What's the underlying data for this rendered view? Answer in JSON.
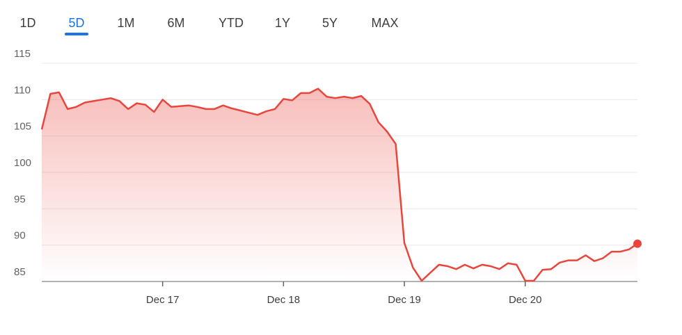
{
  "tabs": {
    "items": [
      "1D",
      "5D",
      "1M",
      "6M",
      "YTD",
      "1Y",
      "5Y",
      "MAX"
    ],
    "selected": 1
  },
  "chart_data": {
    "type": "line",
    "x": [
      0,
      1,
      2,
      3,
      4,
      5,
      6,
      7,
      8,
      9,
      10,
      11,
      12,
      13,
      14,
      15,
      16,
      17,
      18,
      19,
      20,
      21,
      22,
      23,
      24,
      25,
      26,
      27,
      28,
      29,
      30,
      31,
      32,
      33,
      34,
      35,
      36,
      37,
      38,
      39,
      40,
      41,
      42,
      43,
      44,
      45,
      46,
      47,
      48,
      49,
      50,
      51,
      52,
      53,
      54,
      55,
      56,
      57,
      58,
      59,
      60,
      61,
      62,
      63,
      64,
      65,
      66,
      67,
      68,
      69
    ],
    "series": [
      {
        "name": null,
        "color": "#e8453c",
        "values": [
          105.9,
          110.8,
          111.0,
          108.7,
          109.0,
          109.6,
          109.8,
          110.0,
          110.2,
          109.8,
          108.7,
          109.5,
          109.3,
          108.3,
          110.0,
          109.0,
          109.1,
          109.2,
          109.0,
          108.7,
          108.7,
          109.2,
          108.8,
          108.5,
          108.2,
          107.9,
          108.4,
          108.7,
          110.1,
          109.9,
          110.9,
          110.9,
          111.5,
          110.4,
          110.2,
          110.4,
          110.2,
          110.5,
          109.4,
          106.9,
          105.6,
          103.9,
          90.3,
          86.9,
          85.1,
          86.2,
          87.3,
          87.1,
          86.7,
          87.3,
          86.8,
          87.3,
          87.1,
          86.7,
          87.5,
          87.3,
          85.1,
          85.1,
          86.6,
          86.7,
          87.6,
          87.9,
          87.9,
          88.6,
          87.8,
          88.2,
          89.1,
          89.1,
          89.4,
          90.2
        ]
      }
    ],
    "xlim": [
      0,
      69
    ],
    "xticks": [
      {
        "value": 14,
        "label": "Dec 17"
      },
      {
        "value": 28,
        "label": "Dec 18"
      },
      {
        "value": 42,
        "label": "Dec 19"
      },
      {
        "value": 56,
        "label": "Dec 20"
      }
    ],
    "ylim": [
      85,
      115
    ],
    "yticks": [
      85,
      90,
      95,
      100,
      105,
      110,
      115
    ],
    "grid": true
  }
}
